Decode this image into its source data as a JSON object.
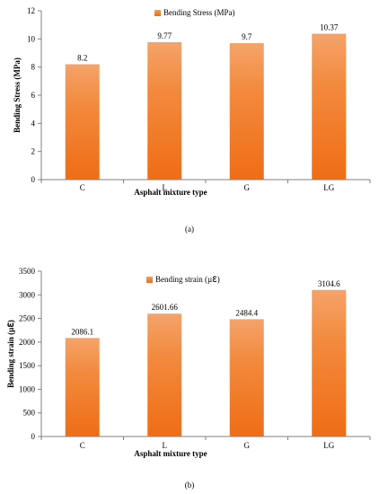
{
  "chart_data": [
    {
      "type": "bar",
      "panel_label": "(a)",
      "categories": [
        "C",
        "L",
        "G",
        "LG"
      ],
      "series": [
        {
          "name": "Bending Stress (MPa)",
          "values": [
            8.2,
            9.77,
            9.7,
            10.37
          ],
          "labels": [
            "8.2",
            "9.77",
            "9.7",
            "10.37"
          ]
        }
      ],
      "xlabel": "Asphalt mixture type",
      "ylabel": "Bending Stress (MPa)",
      "ylim": [
        0,
        12
      ],
      "yticks": [
        0,
        2,
        4,
        6,
        8,
        10,
        12
      ],
      "grid": false,
      "legend": "top-center"
    },
    {
      "type": "bar",
      "panel_label": "(b)",
      "categories": [
        "C",
        "L",
        "G",
        "LG"
      ],
      "series": [
        {
          "name": "Bending strain (µℇ)",
          "values": [
            2086.1,
            2601.66,
            2484.4,
            3104.6
          ],
          "labels": [
            "2086.1",
            "2601.66",
            "2484.4",
            "3104.6"
          ]
        }
      ],
      "xlabel": "Asphalt mixture type",
      "ylabel": "Bending strain (µℇ)",
      "ylim": [
        0,
        3500
      ],
      "yticks": [
        0,
        500,
        1000,
        1500,
        2000,
        2500,
        3000,
        3500
      ],
      "grid": false,
      "legend": "top-center"
    }
  ],
  "colors": {
    "bar_top": "#f5a36a",
    "bar_bottom": "#ef6d16",
    "axis": "#808080"
  }
}
